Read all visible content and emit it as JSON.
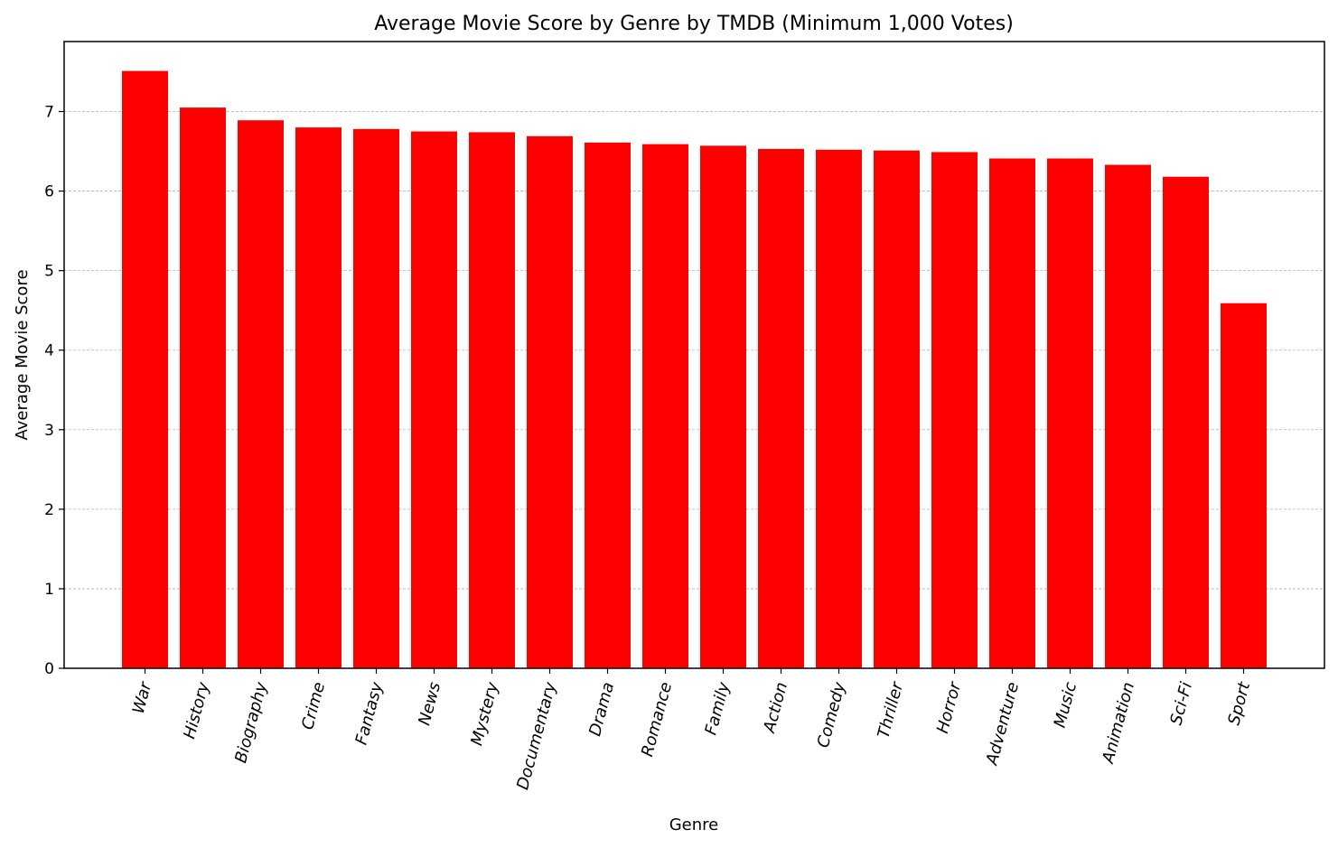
{
  "chart_data": {
    "type": "bar",
    "title": "Average Movie Score by Genre by TMDB (Minimum 1,000 Votes)",
    "xlabel": "Genre",
    "ylabel": "Average Movie Score",
    "categories": [
      "War",
      "History",
      "Biography",
      "Crime",
      "Fantasy",
      "News",
      "Mystery",
      "Documentary",
      "Drama",
      "Romance",
      "Family",
      "Action",
      "Comedy",
      "Thriller",
      "Horror",
      "Adventure",
      "Music",
      "Animation",
      "Sci-Fi",
      "Sport"
    ],
    "values": [
      7.51,
      7.05,
      6.89,
      6.8,
      6.78,
      6.75,
      6.74,
      6.69,
      6.61,
      6.59,
      6.57,
      6.53,
      6.52,
      6.51,
      6.49,
      6.41,
      6.41,
      6.33,
      6.18,
      4.59
    ],
    "ylim": [
      0,
      7.88
    ],
    "yticks": [
      0,
      1,
      2,
      3,
      4,
      5,
      6,
      7
    ],
    "grid": "y-dashed",
    "bar_color": "#ff0000",
    "grid_color": "#b0b0b0"
  }
}
